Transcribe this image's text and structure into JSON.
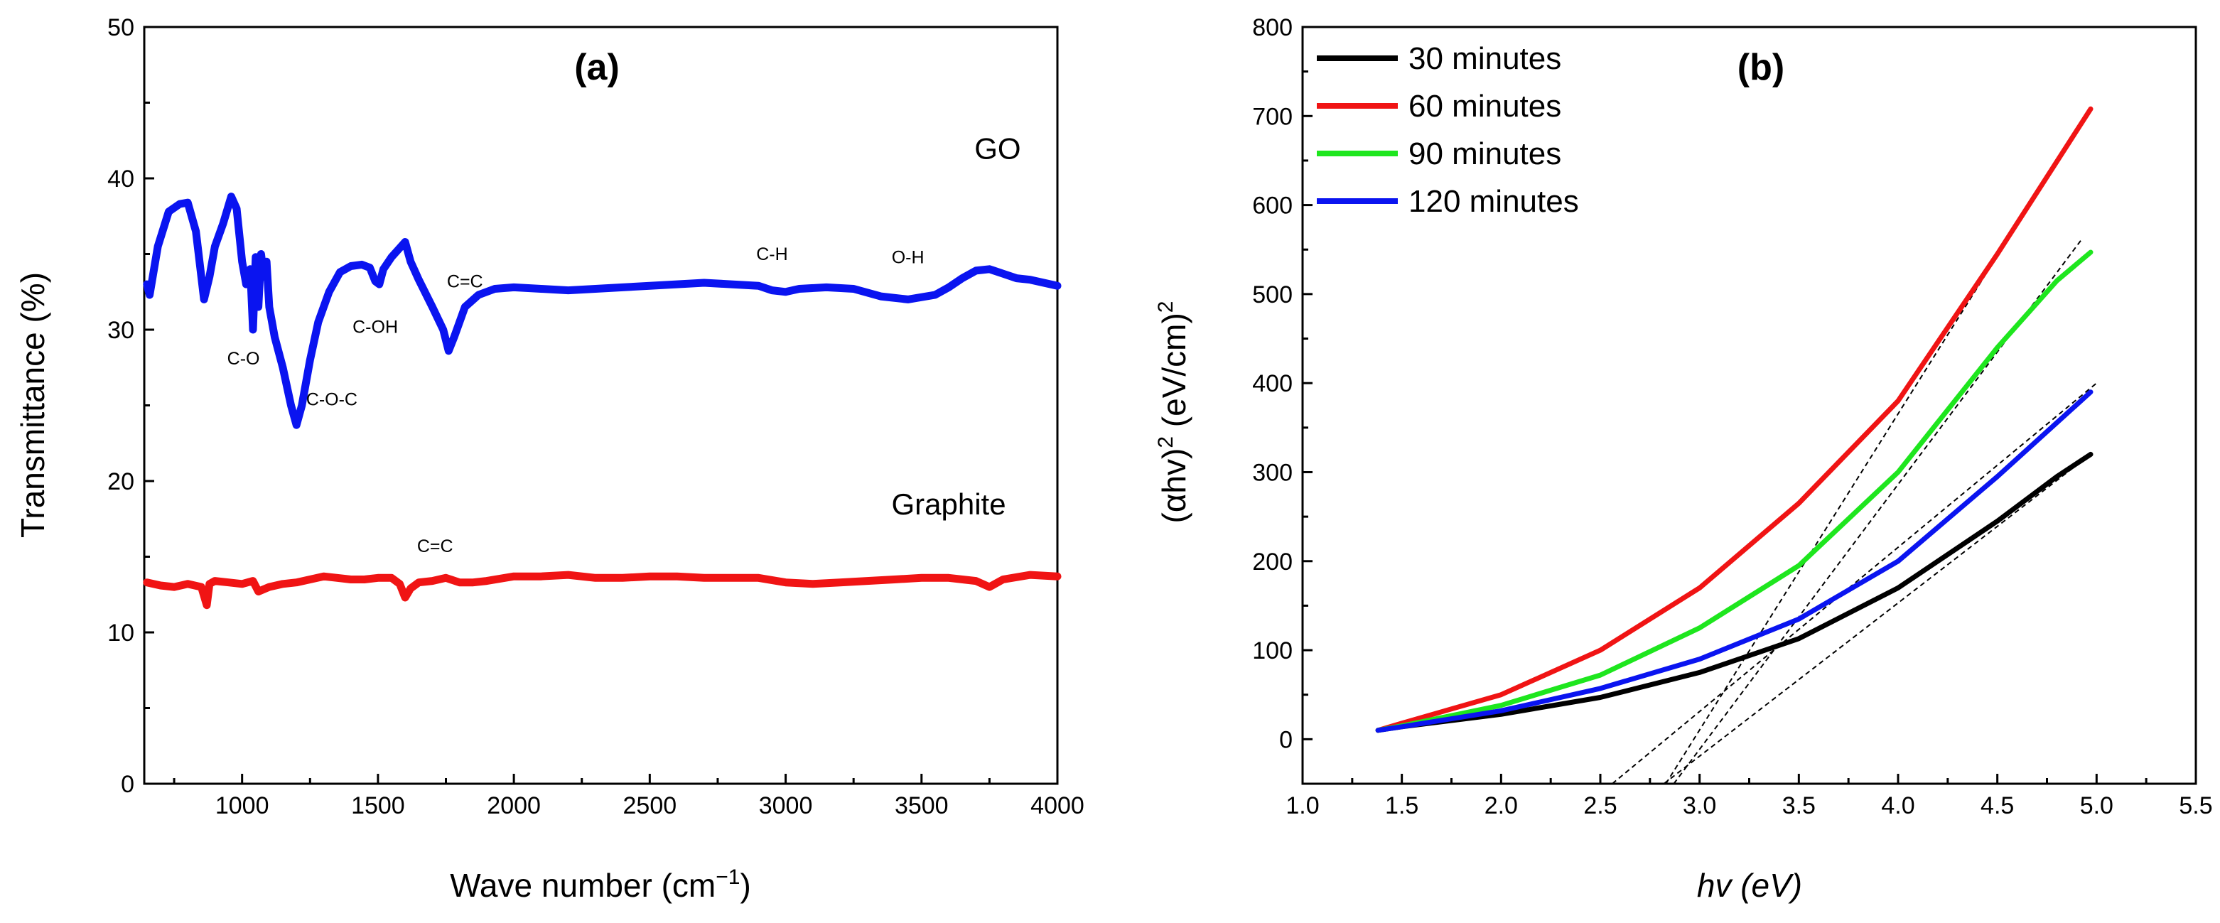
{
  "chart_data": [
    {
      "type": "line",
      "panel_label": "(a)",
      "xlabel": "Wave number (cm",
      "xlabel_sup": "−1",
      "xlabel_end": ")",
      "ylabel": "Transmittance (%)",
      "xlim": [
        640,
        4000
      ],
      "ylim": [
        0,
        50
      ],
      "xticks": [
        1000,
        1500,
        2000,
        2500,
        3000,
        3500,
        4000
      ],
      "yticks": [
        0,
        10,
        20,
        30,
        40,
        50
      ],
      "series": [
        {
          "name": "GO",
          "color": "#0a14f0",
          "x": [
            650,
            660,
            690,
            730,
            770,
            800,
            830,
            860,
            880,
            900,
            930,
            960,
            980,
            1000,
            1015,
            1030,
            1040,
            1050,
            1060,
            1070,
            1080,
            1090,
            1100,
            1120,
            1150,
            1180,
            1200,
            1220,
            1250,
            1280,
            1320,
            1360,
            1400,
            1440,
            1470,
            1490,
            1505,
            1520,
            1550,
            1580,
            1600,
            1620,
            1650,
            1700,
            1740,
            1760,
            1780,
            1820,
            1870,
            1930,
            2000,
            2100,
            2200,
            2300,
            2400,
            2500,
            2600,
            2700,
            2800,
            2900,
            2950,
            3000,
            3050,
            3150,
            3250,
            3350,
            3450,
            3550,
            3600,
            3650,
            3700,
            3750,
            3800,
            3850,
            3900,
            3950,
            4000
          ],
          "y": [
            33.0,
            32.3,
            35.5,
            37.8,
            38.3,
            38.4,
            36.5,
            32.0,
            33.5,
            35.5,
            37.0,
            38.8,
            38.0,
            34.5,
            33.0,
            34.0,
            30.0,
            34.8,
            31.5,
            35.0,
            33.5,
            34.5,
            31.5,
            29.5,
            27.5,
            25.0,
            23.7,
            25.0,
            28.0,
            30.5,
            32.5,
            33.8,
            34.2,
            34.3,
            34.1,
            33.2,
            33.0,
            34.0,
            34.8,
            35.4,
            35.8,
            34.5,
            33.3,
            31.5,
            30.0,
            28.6,
            29.5,
            31.5,
            32.3,
            32.7,
            32.8,
            32.7,
            32.6,
            32.7,
            32.8,
            32.9,
            33.0,
            33.1,
            33.0,
            32.9,
            32.6,
            32.5,
            32.7,
            32.8,
            32.7,
            32.2,
            32.0,
            32.3,
            32.8,
            33.4,
            33.9,
            34.0,
            33.7,
            33.4,
            33.3,
            33.1,
            32.9
          ]
        },
        {
          "name": "Graphite",
          "color": "#f01414",
          "x": [
            650,
            700,
            750,
            800,
            850,
            870,
            880,
            900,
            950,
            1000,
            1040,
            1060,
            1100,
            1150,
            1200,
            1250,
            1300,
            1350,
            1400,
            1450,
            1500,
            1550,
            1580,
            1600,
            1620,
            1650,
            1700,
            1750,
            1800,
            1850,
            1900,
            2000,
            2100,
            2200,
            2300,
            2400,
            2500,
            2600,
            2700,
            2800,
            2900,
            3000,
            3100,
            3200,
            3300,
            3400,
            3500,
            3600,
            3700,
            3750,
            3800,
            3900,
            4000
          ],
          "y": [
            13.3,
            13.1,
            13.0,
            13.2,
            13.0,
            11.8,
            13.2,
            13.4,
            13.3,
            13.2,
            13.4,
            12.7,
            13.0,
            13.2,
            13.3,
            13.5,
            13.7,
            13.6,
            13.5,
            13.5,
            13.6,
            13.6,
            13.2,
            12.3,
            12.9,
            13.3,
            13.4,
            13.6,
            13.3,
            13.3,
            13.4,
            13.7,
            13.7,
            13.8,
            13.6,
            13.6,
            13.7,
            13.7,
            13.6,
            13.6,
            13.6,
            13.3,
            13.2,
            13.3,
            13.4,
            13.5,
            13.6,
            13.6,
            13.4,
            13.0,
            13.5,
            13.8,
            13.7
          ]
        }
      ],
      "annotations": [
        {
          "text": "C-O",
          "x": 1005,
          "y": 27.7
        },
        {
          "text": "C-O-C",
          "x": 1330,
          "y": 25.0
        },
        {
          "text": "C-OH",
          "x": 1490,
          "y": 29.8
        },
        {
          "text": "C=C",
          "x": 1820,
          "y": 32.8
        },
        {
          "text": "C-H",
          "x": 2950,
          "y": 34.6
        },
        {
          "text": "O-H",
          "x": 3450,
          "y": 34.4
        },
        {
          "text": "C=C",
          "x": 1710,
          "y": 15.3
        }
      ],
      "series_labels": [
        {
          "text": "GO",
          "x": 3780,
          "y": 41.3
        },
        {
          "text": "Graphite",
          "x": 3600,
          "y": 17.8
        }
      ]
    },
    {
      "type": "line",
      "panel_label": "(b)",
      "xlabel": "hv (eV)",
      "ylabel_prefix": "(αhv)",
      "ylabel_sup1": "2",
      "ylabel_mid": " (eV/cm)",
      "ylabel_sup2": "2",
      "xlim": [
        1.0,
        5.5
      ],
      "ylim": [
        -50,
        800
      ],
      "xticks": [
        1.0,
        1.5,
        2.0,
        2.5,
        3.0,
        3.5,
        4.0,
        4.5,
        5.0,
        5.5
      ],
      "yticks": [
        0,
        100,
        200,
        300,
        400,
        500,
        600,
        700,
        800
      ],
      "legend_position": "top-left",
      "series": [
        {
          "name": "30 minutes",
          "color": "#000000",
          "x": [
            1.38,
            1.5,
            2.0,
            2.5,
            3.0,
            3.5,
            4.0,
            4.5,
            4.8,
            4.97
          ],
          "y": [
            10,
            14,
            28,
            47,
            75,
            113,
            170,
            245,
            295,
            320
          ]
        },
        {
          "name": "60 minutes",
          "color": "#f01414",
          "x": [
            1.38,
            1.5,
            2.0,
            2.5,
            3.0,
            3.5,
            4.0,
            4.5,
            4.97
          ],
          "y": [
            10,
            18,
            50,
            100,
            170,
            265,
            380,
            545,
            708
          ]
        },
        {
          "name": "90 minutes",
          "color": "#1ee61e",
          "x": [
            1.38,
            1.5,
            2.0,
            2.5,
            3.0,
            3.5,
            4.0,
            4.5,
            4.8,
            4.97
          ],
          "y": [
            10,
            15,
            38,
            72,
            125,
            195,
            300,
            440,
            515,
            547
          ]
        },
        {
          "name": "120 minutes",
          "color": "#0a14f0",
          "x": [
            1.38,
            1.5,
            2.0,
            2.5,
            3.0,
            3.5,
            4.0,
            4.5,
            4.97
          ],
          "y": [
            10,
            14,
            32,
            57,
            90,
            135,
            200,
            295,
            390
          ]
        }
      ],
      "fit_lines": [
        {
          "x": [
            2.83,
            4.97
          ],
          "y": [
            -50,
            710
          ]
        },
        {
          "x": [
            2.87,
            4.92
          ],
          "y": [
            -50,
            560
          ]
        },
        {
          "x": [
            2.56,
            5.0
          ],
          "y": [
            -50,
            400
          ]
        },
        {
          "x": [
            2.82,
            4.97
          ],
          "y": [
            -50,
            320
          ]
        }
      ]
    }
  ]
}
